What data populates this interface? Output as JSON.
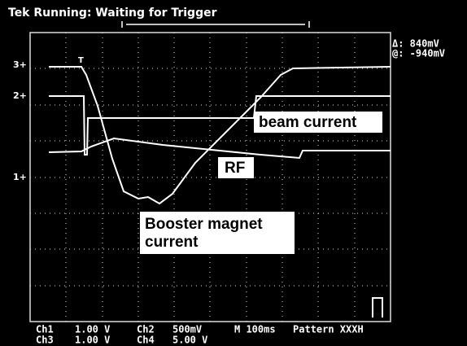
{
  "header": {
    "title": "Tek Running: Waiting for Trigger",
    "delta": "Δ: 840mV",
    "at": "@: -940mV"
  },
  "markers": {
    "ch3": "3+",
    "ch2": "2+",
    "ch1": "1+",
    "trigger": "T"
  },
  "labels": {
    "beam": "beam current",
    "rf": "RF",
    "booster": [
      "Booster magnet",
      "current"
    ]
  },
  "footer": {
    "row1": [
      "Ch1",
      "1.00 V",
      "Ch2",
      "500mV",
      "M 100ms",
      "Pattern XXXH"
    ],
    "row2": [
      "Ch3",
      "1.00 V",
      "Ch4",
      "5.00 V"
    ]
  }
}
